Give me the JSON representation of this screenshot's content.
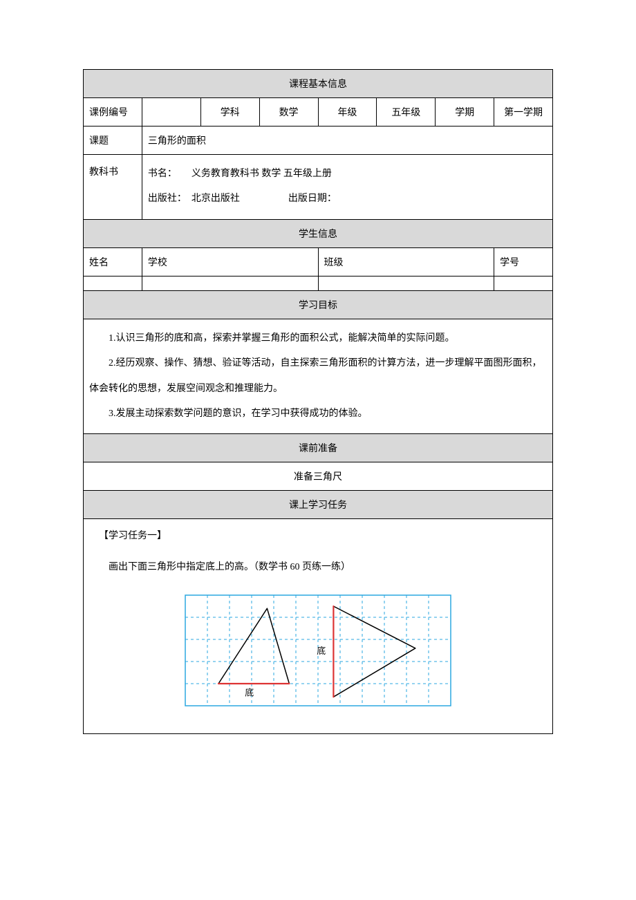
{
  "colors": {
    "header_bg": "#d9d9d9",
    "border": "#000000",
    "grid_line": "#2aa7e0",
    "grid_border": "#2aa7e0",
    "triangle_stroke": "#000000",
    "base_highlight": "#d33",
    "label_text": "#000000"
  },
  "section_titles": {
    "course_info": "课程基本信息",
    "student_info": "学生信息",
    "objectives": "学习目标",
    "preclass": "课前准备",
    "inclass": "课上学习任务"
  },
  "course_info": {
    "labels": {
      "case_no": "课例编号",
      "subject": "学科",
      "grade": "年级",
      "term": "学期",
      "topic": "课题",
      "textbook": "教科书"
    },
    "values": {
      "case_no": "",
      "subject": "数学",
      "grade": "五年级",
      "term": "第一学期",
      "topic": "三角形的面积",
      "textbook_line1": "书名：　　义务教育教科书 数学 五年级上册",
      "textbook_line2": "出版社：　北京出版社　　　　　出版日期："
    }
  },
  "student_info": {
    "labels": {
      "name": "姓名",
      "school": "学校",
      "class": "班级",
      "sid": "学号"
    },
    "values": {
      "name": "",
      "school": "",
      "class": "",
      "sid": ""
    }
  },
  "objectives": [
    "1.认识三角形的底和高，探索并掌握三角形的面积公式，能解决简单的实际问题。",
    "2.经历观察、操作、猜想、验证等活动，自主探索三角形面积的计算方法，进一步理解平面图形面积，体会转化的思想，发展空间观念和推理能力。",
    "3.发展主动探索数学问题的意识，在学习中获得成功的体验。"
  ],
  "preclass_content": "准备三角尺",
  "task": {
    "heading": "【学习任务一】",
    "prompt": "画出下面三角形中指定底上的高。（数学书 60 页练一练）"
  },
  "figure": {
    "type": "diagram",
    "grid": {
      "cols": 12,
      "rows": 5,
      "cell": 32,
      "line_color": "#2aa7e0",
      "line_dash": "4 4",
      "border_color": "#2aa7e0",
      "border_width": 1.5
    },
    "triangles": [
      {
        "points_grid": [
          [
            1.5,
            4
          ],
          [
            3.7,
            0.6
          ],
          [
            4.7,
            4
          ]
        ],
        "base_segment_grid": [
          [
            1.5,
            4
          ],
          [
            4.7,
            4
          ]
        ],
        "label": "底",
        "label_pos_grid": [
          2.9,
          4.55
        ]
      },
      {
        "points_grid": [
          [
            6.7,
            0.5
          ],
          [
            6.7,
            4.6
          ],
          [
            10.4,
            2.4
          ]
        ],
        "base_segment_grid": [
          [
            6.7,
            0.5
          ],
          [
            6.7,
            4.6
          ]
        ],
        "label": "底",
        "label_pos_grid": [
          6.15,
          2.65
        ]
      }
    ],
    "triangle_stroke": "#000000",
    "triangle_stroke_width": 1.5,
    "base_color": "#d33",
    "base_width": 2.2
  }
}
